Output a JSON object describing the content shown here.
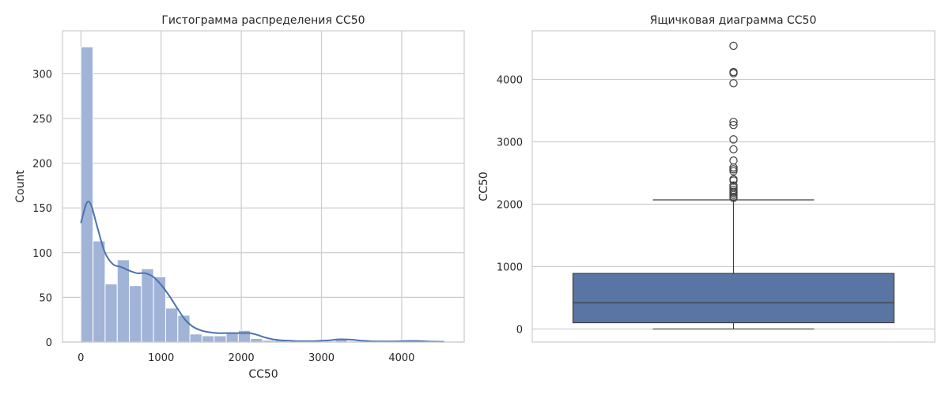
{
  "chart_data": [
    {
      "type": "bar",
      "subtype": "histogram-with-kde",
      "title": "Гистограмма распределения CC50",
      "xlabel": "CC50",
      "ylabel": "Count",
      "xlim": [
        -230,
        4780
      ],
      "ylim": [
        0,
        348
      ],
      "xticks": [
        0,
        1000,
        2000,
        3000,
        4000
      ],
      "yticks": [
        0,
        50,
        100,
        150,
        200,
        250,
        300
      ],
      "grid": true,
      "bar_color": "#a1b4d7",
      "line_color": "#4c72b0",
      "bins": [
        {
          "x0": 0,
          "x1": 151,
          "count": 330
        },
        {
          "x0": 151,
          "x1": 302,
          "count": 113
        },
        {
          "x0": 302,
          "x1": 453,
          "count": 65
        },
        {
          "x0": 453,
          "x1": 604,
          "count": 92
        },
        {
          "x0": 604,
          "x1": 755,
          "count": 63
        },
        {
          "x0": 755,
          "x1": 906,
          "count": 82
        },
        {
          "x0": 906,
          "x1": 1057,
          "count": 73
        },
        {
          "x0": 1057,
          "x1": 1208,
          "count": 38
        },
        {
          "x0": 1208,
          "x1": 1359,
          "count": 30
        },
        {
          "x0": 1359,
          "x1": 1510,
          "count": 9
        },
        {
          "x0": 1510,
          "x1": 1661,
          "count": 7
        },
        {
          "x0": 1661,
          "x1": 1812,
          "count": 7
        },
        {
          "x0": 1812,
          "x1": 1963,
          "count": 11
        },
        {
          "x0": 1963,
          "x1": 2114,
          "count": 13
        },
        {
          "x0": 2114,
          "x1": 2265,
          "count": 4
        },
        {
          "x0": 2265,
          "x1": 2416,
          "count": 2
        },
        {
          "x0": 2416,
          "x1": 2567,
          "count": 2
        },
        {
          "x0": 2567,
          "x1": 2718,
          "count": 1
        },
        {
          "x0": 2718,
          "x1": 2869,
          "count": 1
        },
        {
          "x0": 2869,
          "x1": 3020,
          "count": 1
        },
        {
          "x0": 3020,
          "x1": 3171,
          "count": 1
        },
        {
          "x0": 3171,
          "x1": 3322,
          "count": 3
        },
        {
          "x0": 3322,
          "x1": 3473,
          "count": 1
        },
        {
          "x0": 3473,
          "x1": 3624,
          "count": 0
        },
        {
          "x0": 3624,
          "x1": 3775,
          "count": 0
        },
        {
          "x0": 3775,
          "x1": 3926,
          "count": 0
        },
        {
          "x0": 3926,
          "x1": 4077,
          "count": 1
        },
        {
          "x0": 4077,
          "x1": 4228,
          "count": 2
        },
        {
          "x0": 4228,
          "x1": 4379,
          "count": 0
        },
        {
          "x0": 4379,
          "x1": 4530,
          "count": 1
        }
      ],
      "kde": {
        "x": [
          0,
          60,
          100,
          140,
          200,
          300,
          400,
          500,
          600,
          700,
          800,
          900,
          1000,
          1100,
          1200,
          1300,
          1400,
          1500,
          1600,
          1700,
          1800,
          1900,
          2000,
          2100,
          2200,
          2300,
          2400,
          2500,
          2600,
          2700,
          2800,
          2900,
          3000,
          3100,
          3200,
          3300,
          3400,
          3500,
          3600,
          3700,
          3800,
          3900,
          4000,
          4100,
          4200,
          4300,
          4400,
          4530
        ],
        "y": [
          133,
          153,
          157,
          150,
          130,
          100,
          87,
          84,
          80,
          77,
          77,
          73,
          64,
          52,
          38,
          25,
          17,
          13,
          11,
          10,
          10,
          10,
          10,
          10,
          8,
          5,
          3,
          2,
          1.5,
          1,
          1,
          1,
          1.5,
          2,
          3,
          3,
          2.5,
          1.5,
          1,
          0.8,
          0.8,
          0.8,
          1,
          1.2,
          1.2,
          0.8,
          0.5,
          0.3
        ]
      }
    },
    {
      "type": "box",
      "title": "Ящичковая диаграмма CC50",
      "xlabel": "",
      "ylabel": "CC50",
      "ylim": [
        -210,
        4780
      ],
      "yticks": [
        0,
        1000,
        2000,
        3000,
        4000
      ],
      "grid": true,
      "box_color": "#5875a4",
      "line_color": "#404040",
      "stats": {
        "whisker_low": 0,
        "q1": 100,
        "median": 420,
        "q3": 890,
        "whisker_high": 2070
      },
      "outliers": [
        2100,
        2120,
        2150,
        2180,
        2200,
        2230,
        2270,
        2300,
        2380,
        2400,
        2530,
        2560,
        2590,
        2700,
        2880,
        3040,
        3270,
        3320,
        3940,
        4100,
        4120,
        4540
      ]
    }
  ]
}
